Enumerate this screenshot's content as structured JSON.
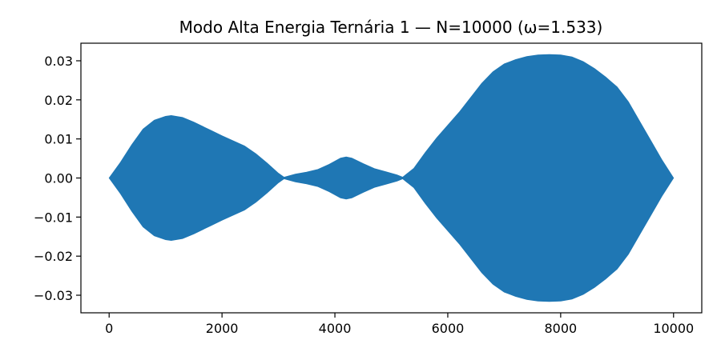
{
  "chart_data": {
    "type": "area",
    "title": "Modo Alta Energia Ternária 1 — N=10000 (ω=1.533)",
    "xlabel": "",
    "ylabel": "",
    "xlim": [
      -500,
      10500
    ],
    "ylim": [
      -0.0345,
      0.0345
    ],
    "grid": false,
    "x_ticks": [
      0,
      2000,
      4000,
      6000,
      8000,
      10000
    ],
    "x_tick_labels": [
      "0",
      "2000",
      "4000",
      "6000",
      "8000",
      "10000"
    ],
    "y_ticks": [
      0.03,
      0.02,
      0.01,
      0.0,
      -0.01,
      -0.02,
      -0.03
    ],
    "y_tick_labels": [
      "0.03",
      "0.02",
      "0.01",
      "0.00",
      "−0.01",
      "−0.02",
      "−0.03"
    ],
    "fill_color": "#1f77b4",
    "series": [
      {
        "x": [
          0,
          200,
          400,
          600,
          800,
          1000,
          1100,
          1300,
          1500,
          1800,
          2000,
          2200,
          2400,
          2600,
          2800,
          3000,
          3100,
          3300,
          3500,
          3700,
          3900,
          4100,
          4200,
          4300,
          4500,
          4700,
          4900,
          5100,
          5200,
          5400,
          5600,
          5800,
          6000,
          6200,
          6400,
          6600,
          6800,
          7000,
          7200,
          7400,
          7600,
          7800,
          8000,
          8200,
          8400,
          8600,
          8800,
          9000,
          9200,
          9400,
          9600,
          9800,
          10000
        ],
        "y_upper": [
          0.0,
          0.004,
          0.0085,
          0.0125,
          0.0148,
          0.0158,
          0.016,
          0.0155,
          0.0143,
          0.0122,
          0.0108,
          0.0095,
          0.0082,
          0.0062,
          0.0038,
          0.0012,
          0.0002,
          0.001,
          0.0015,
          0.0022,
          0.0035,
          0.0051,
          0.0054,
          0.0051,
          0.0037,
          0.0024,
          0.0016,
          0.0008,
          0.0002,
          0.0025,
          0.0065,
          0.0102,
          0.0135,
          0.0168,
          0.0205,
          0.0242,
          0.0272,
          0.0292,
          0.0303,
          0.0311,
          0.0315,
          0.0316,
          0.0315,
          0.031,
          0.0298,
          0.028,
          0.0258,
          0.0233,
          0.0195,
          0.0145,
          0.0095,
          0.0045,
          0.0
        ],
        "y_lower": [
          0.0,
          -0.004,
          -0.0085,
          -0.0125,
          -0.0148,
          -0.0158,
          -0.016,
          -0.0155,
          -0.0143,
          -0.0122,
          -0.0108,
          -0.0095,
          -0.0082,
          -0.0062,
          -0.0038,
          -0.0012,
          -0.0002,
          -0.001,
          -0.0015,
          -0.0022,
          -0.0035,
          -0.0051,
          -0.0054,
          -0.0051,
          -0.0037,
          -0.0024,
          -0.0016,
          -0.0008,
          -0.0002,
          -0.0025,
          -0.0065,
          -0.0102,
          -0.0135,
          -0.0168,
          -0.0205,
          -0.0242,
          -0.0272,
          -0.0292,
          -0.0303,
          -0.0311,
          -0.0315,
          -0.0316,
          -0.0315,
          -0.031,
          -0.0298,
          -0.028,
          -0.0258,
          -0.0233,
          -0.0195,
          -0.0145,
          -0.0095,
          -0.0045,
          0.0
        ]
      }
    ]
  }
}
